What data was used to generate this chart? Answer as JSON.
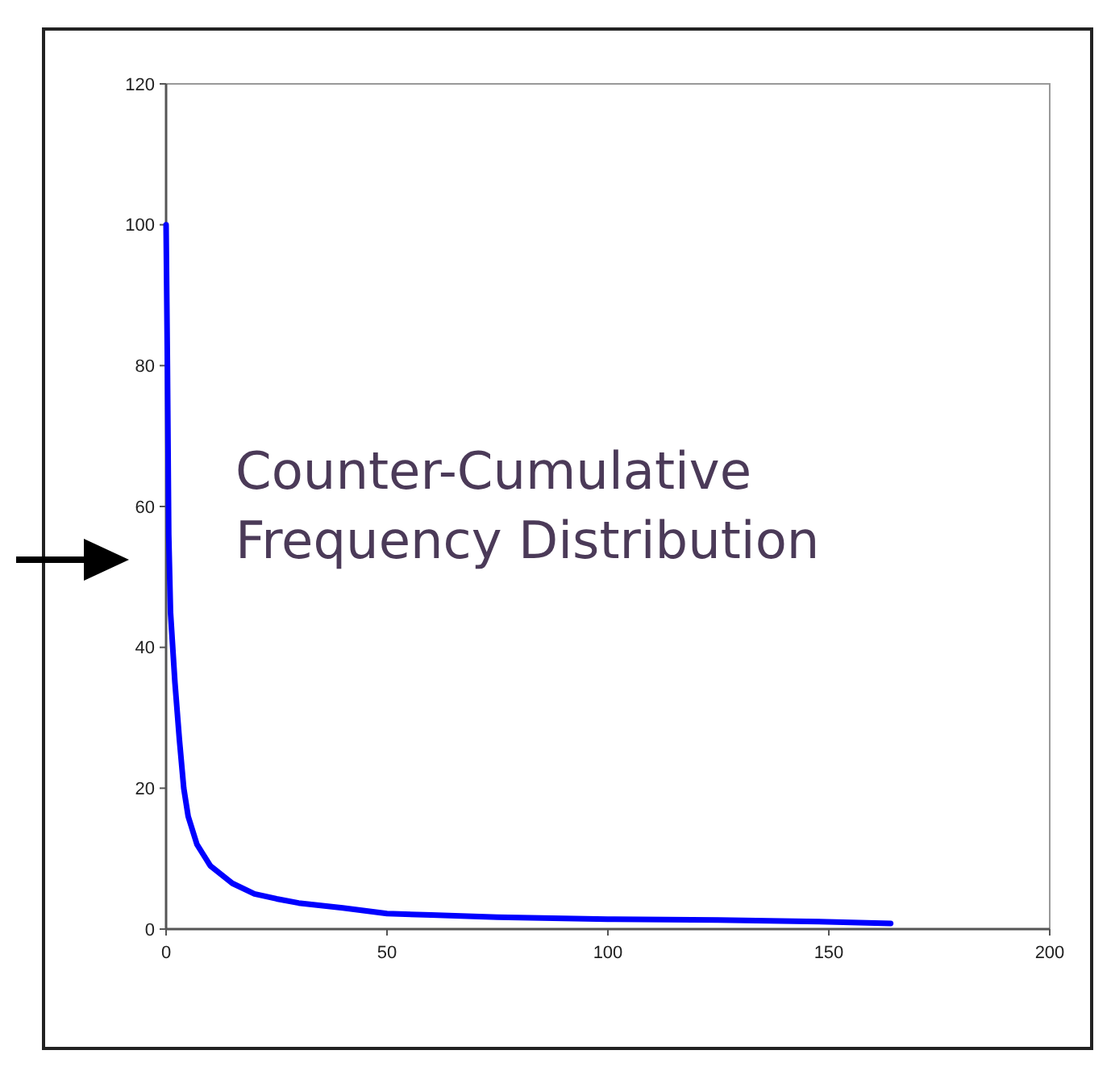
{
  "chart_data": {
    "type": "line",
    "annotations": [
      "Counter-Cumulative Frequency Distribution"
    ],
    "x": [
      0,
      0.3,
      0.6,
      1,
      2,
      3,
      4,
      5,
      7,
      10,
      15,
      20,
      25,
      30,
      40,
      50,
      60,
      75,
      100,
      125,
      145,
      164
    ],
    "series": [
      {
        "color": "#0000ff",
        "values": [
          100,
          80,
          56,
          45,
          35,
          27,
          20,
          16,
          12,
          9,
          6.5,
          5,
          4.3,
          3.7,
          3,
          2.2,
          2,
          1.7,
          1.4,
          1.3,
          1.1,
          0.8
        ]
      }
    ],
    "xlim": [
      0,
      200
    ],
    "xticks": [
      0,
      50,
      100,
      150,
      200
    ],
    "ylim": [
      0,
      120
    ],
    "yticks": [
      0,
      20,
      40,
      60,
      80,
      100,
      120
    ],
    "grid": false,
    "marker": "none",
    "line_style": "solid"
  }
}
